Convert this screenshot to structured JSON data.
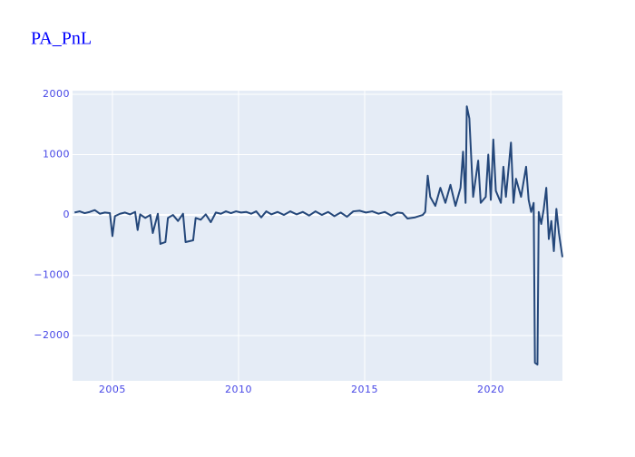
{
  "chart_data": {
    "type": "line",
    "title": "PA_PnL",
    "x": [
      2003.5,
      2003.7,
      2003.9,
      2004.1,
      2004.3,
      2004.5,
      2004.7,
      2004.9,
      2005.0,
      2005.1,
      2005.3,
      2005.5,
      2005.7,
      2005.9,
      2006.0,
      2006.1,
      2006.3,
      2006.5,
      2006.6,
      2006.8,
      2006.9,
      2007.1,
      2007.2,
      2007.4,
      2007.6,
      2007.8,
      2007.9,
      2008.2,
      2008.3,
      2008.5,
      2008.7,
      2008.9,
      2009.1,
      2009.3,
      2009.5,
      2009.7,
      2009.9,
      2010.1,
      2010.3,
      2010.5,
      2010.7,
      2010.9,
      2011.1,
      2011.3,
      2011.55,
      2011.8,
      2012.05,
      2012.3,
      2012.55,
      2012.8,
      2013.05,
      2013.3,
      2013.55,
      2013.8,
      2014.05,
      2014.3,
      2014.55,
      2014.8,
      2015.05,
      2015.3,
      2015.55,
      2015.8,
      2016.05,
      2016.3,
      2016.5,
      2016.7,
      2017.0,
      2017.3,
      2017.4,
      2017.5,
      2017.6,
      2017.8,
      2018.0,
      2018.2,
      2018.4,
      2018.6,
      2018.8,
      2018.9,
      2019.0,
      2019.05,
      2019.15,
      2019.3,
      2019.5,
      2019.6,
      2019.8,
      2019.9,
      2020.0,
      2020.1,
      2020.2,
      2020.4,
      2020.5,
      2020.6,
      2020.8,
      2020.9,
      2021.0,
      2021.2,
      2021.4,
      2021.5,
      2021.6,
      2021.7,
      2021.75,
      2021.85,
      2021.9,
      2022.0,
      2022.1,
      2022.2,
      2022.3,
      2022.4,
      2022.5,
      2022.6,
      2022.7,
      2022.84
    ],
    "series": [
      {
        "name": "PA_PnL",
        "color": "#24477a",
        "values": [
          40,
          60,
          30,
          50,
          80,
          20,
          40,
          30,
          -350,
          -20,
          20,
          40,
          10,
          50,
          -250,
          10,
          -50,
          0,
          -300,
          20,
          -480,
          -450,
          -50,
          0,
          -100,
          20,
          -450,
          -420,
          -50,
          -80,
          10,
          -120,
          40,
          20,
          60,
          30,
          60,
          40,
          50,
          20,
          60,
          -40,
          60,
          10,
          50,
          0,
          60,
          10,
          50,
          -10,
          60,
          0,
          50,
          -20,
          40,
          -30,
          60,
          70,
          40,
          60,
          20,
          50,
          -10,
          40,
          30,
          -60,
          -40,
          0,
          50,
          650,
          300,
          150,
          450,
          200,
          500,
          150,
          450,
          1050,
          200,
          1800,
          1600,
          300,
          900,
          200,
          300,
          1000,
          250,
          1250,
          400,
          200,
          800,
          300,
          1200,
          200,
          600,
          300,
          800,
          250,
          50,
          200,
          -2450,
          -2480,
          50,
          -150,
          100,
          450,
          -400,
          -100,
          -600,
          100,
          -300,
          -700
        ]
      }
    ],
    "xlim": [
      2003.42,
      2022.84
    ],
    "xticks": [
      2005,
      2010,
      2015,
      2020
    ],
    "ylim": [
      -2750,
      2060
    ],
    "yticks": [
      2000,
      1000,
      0,
      {
        "value": -1000,
        "label": "−1000"
      },
      {
        "value": -2000,
        "label": "−2000"
      }
    ],
    "grid": true
  }
}
